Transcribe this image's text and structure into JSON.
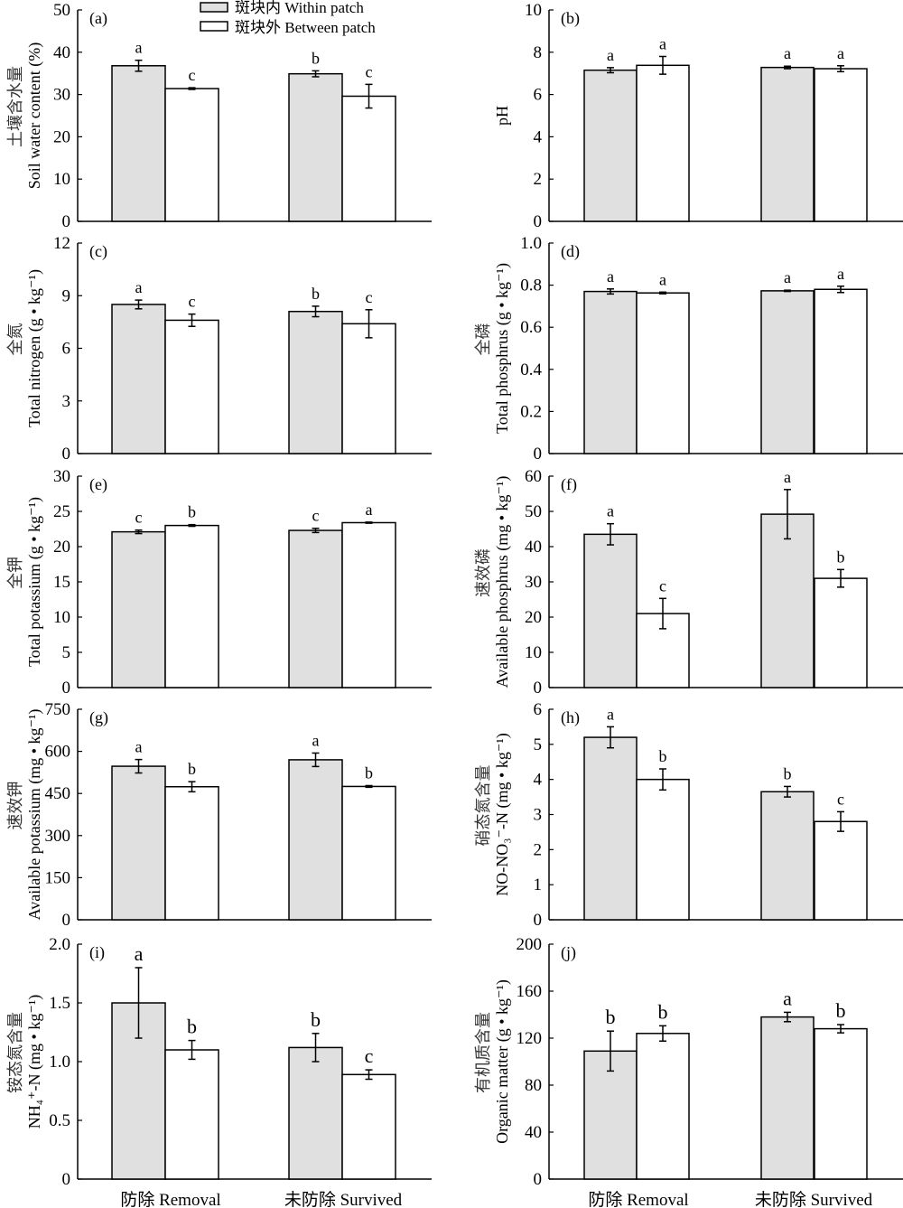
{
  "legend": {
    "items": [
      {
        "label": "斑块内 Within patch",
        "color": "#e0e0e0"
      },
      {
        "label": "斑块外 Between patch",
        "color": "#ffffff"
      }
    ]
  },
  "x_categories": [
    "防除 Removal",
    "未防除 Survived"
  ],
  "chart_data": [
    {
      "id": "a",
      "type": "bar",
      "panel_label": "(a)",
      "ylabel_cn": "土壤含水量",
      "ylabel_en": "Soil water content (%)",
      "ylim": [
        0,
        50
      ],
      "yticks": [
        0,
        10,
        20,
        30,
        40,
        50
      ],
      "tick_labels": [
        "0",
        "10",
        "20",
        "30",
        "40",
        "50"
      ],
      "categories": [
        "防除 Removal",
        "未防除 Survived"
      ],
      "series": [
        {
          "name": "斑块内 Within patch",
          "values": [
            36.8,
            34.9
          ],
          "errors": [
            1.3,
            0.7
          ],
          "letters": [
            "a",
            "b"
          ]
        },
        {
          "name": "斑块外 Between patch",
          "values": [
            31.4,
            29.6
          ],
          "errors": [
            0.2,
            2.8
          ],
          "letters": [
            "c",
            "c"
          ]
        }
      ]
    },
    {
      "id": "b",
      "type": "bar",
      "panel_label": "(b)",
      "ylabel_cn": "",
      "ylabel_en": "pH",
      "ylim": [
        0,
        10
      ],
      "yticks": [
        0,
        2,
        4,
        6,
        8,
        10
      ],
      "tick_labels": [
        "0",
        "2",
        "4",
        "6",
        "8",
        "10"
      ],
      "categories": [
        "防除 Removal",
        "未防除 Survived"
      ],
      "series": [
        {
          "name": "斑块内 Within patch",
          "values": [
            7.15,
            7.28
          ],
          "errors": [
            0.12,
            0.06
          ],
          "letters": [
            "a",
            "a"
          ]
        },
        {
          "name": "斑块外 Between patch",
          "values": [
            7.38,
            7.22
          ],
          "errors": [
            0.42,
            0.14
          ],
          "letters": [
            "a",
            "a"
          ]
        }
      ]
    },
    {
      "id": "c",
      "type": "bar",
      "panel_label": "(c)",
      "ylabel_cn": "全氮",
      "ylabel_en": "Total nitrogen (g • kg⁻¹)",
      "ylim": [
        0,
        12
      ],
      "yticks": [
        0,
        3,
        6,
        9,
        12
      ],
      "tick_labels": [
        "0",
        "3",
        "6",
        "9",
        "12"
      ],
      "categories": [
        "防除 Removal",
        "未防除 Survived"
      ],
      "series": [
        {
          "name": "斑块内 Within patch",
          "values": [
            8.5,
            8.1
          ],
          "errors": [
            0.25,
            0.3
          ],
          "letters": [
            "a",
            "b"
          ]
        },
        {
          "name": "斑块外 Between patch",
          "values": [
            7.6,
            7.4
          ],
          "errors": [
            0.35,
            0.8
          ],
          "letters": [
            "c",
            "c"
          ]
        }
      ]
    },
    {
      "id": "d",
      "type": "bar",
      "panel_label": "(d)",
      "ylabel_cn": "全磷",
      "ylabel_en": "Total phosphrus (g • kg⁻¹)",
      "ylim": [
        0,
        1.0
      ],
      "yticks": [
        0,
        0.2,
        0.4,
        0.6,
        0.8,
        1.0
      ],
      "tick_labels": [
        "0",
        "0.2",
        "0.4",
        "0.6",
        "0.8",
        "1.0"
      ],
      "categories": [
        "防除 Removal",
        "未防除 Survived"
      ],
      "series": [
        {
          "name": "斑块内 Within patch",
          "values": [
            0.77,
            0.773
          ],
          "errors": [
            0.012,
            0.003
          ],
          "letters": [
            "a",
            "a"
          ]
        },
        {
          "name": "斑块外 Between patch",
          "values": [
            0.763,
            0.78
          ],
          "errors": [
            0.004,
            0.015
          ],
          "letters": [
            "a",
            "a"
          ]
        }
      ]
    },
    {
      "id": "e",
      "type": "bar",
      "panel_label": "(e)",
      "ylabel_cn": "全钾",
      "ylabel_en": "Total potassium (g • kg⁻¹)",
      "ylim": [
        0,
        30
      ],
      "yticks": [
        0,
        5,
        10,
        15,
        20,
        25,
        30
      ],
      "tick_labels": [
        "0",
        "5",
        "10",
        "15",
        "20",
        "25",
        "30"
      ],
      "categories": [
        "防除 Removal",
        "未防除 Survived"
      ],
      "series": [
        {
          "name": "斑块内 Within patch",
          "values": [
            22.1,
            22.3
          ],
          "errors": [
            0.25,
            0.3
          ],
          "letters": [
            "c",
            "c"
          ]
        },
        {
          "name": "斑块外 Between patch",
          "values": [
            23.0,
            23.4
          ],
          "errors": [
            0.12,
            0.08
          ],
          "letters": [
            "b",
            "a"
          ]
        }
      ]
    },
    {
      "id": "f",
      "type": "bar",
      "panel_label": "(f)",
      "ylabel_cn": "速效磷",
      "ylabel_en": "Available phosphrus (mg • kg⁻¹)",
      "ylim": [
        0,
        60
      ],
      "yticks": [
        0,
        10,
        20,
        30,
        40,
        50,
        60
      ],
      "tick_labels": [
        "0",
        "10",
        "20",
        "30",
        "40",
        "50",
        "60"
      ],
      "categories": [
        "防除 Removal",
        "未防除 Survived"
      ],
      "series": [
        {
          "name": "斑块内 Within patch",
          "values": [
            43.5,
            49.2
          ],
          "errors": [
            3.0,
            7.0
          ],
          "letters": [
            "a",
            "a"
          ]
        },
        {
          "name": "斑块外 Between patch",
          "values": [
            21.0,
            31.0
          ],
          "errors": [
            4.3,
            2.5
          ],
          "letters": [
            "c",
            "b"
          ]
        }
      ]
    },
    {
      "id": "g",
      "type": "bar",
      "panel_label": "(g)",
      "ylabel_cn": "速效钾",
      "ylabel_en": "Available potassium (mg • kg⁻¹)",
      "ylim": [
        0,
        750
      ],
      "yticks": [
        0,
        150,
        300,
        450,
        600,
        750
      ],
      "tick_labels": [
        "0",
        "150",
        "300",
        "450",
        "600",
        "750"
      ],
      "categories": [
        "防除 Removal",
        "未防除 Survived"
      ],
      "series": [
        {
          "name": "斑块内 Within patch",
          "values": [
            547,
            570
          ],
          "errors": [
            24,
            24
          ],
          "letters": [
            "a",
            "a"
          ]
        },
        {
          "name": "斑块外 Between patch",
          "values": [
            474,
            475
          ],
          "errors": [
            18,
            3
          ],
          "letters": [
            "b",
            "b"
          ]
        }
      ]
    },
    {
      "id": "h",
      "type": "bar",
      "panel_label": "(h)",
      "ylabel_cn": "硝态氮含量",
      "ylabel_en": "NO-NO₃⁻-N (mg • kg⁻¹)",
      "ylim": [
        0,
        6
      ],
      "yticks": [
        0,
        1,
        2,
        3,
        4,
        5,
        6
      ],
      "tick_labels": [
        "0",
        "1",
        "2",
        "3",
        "4",
        "5",
        "6"
      ],
      "categories": [
        "防除 Removal",
        "未防除 Survived"
      ],
      "series": [
        {
          "name": "斑块内 Within patch",
          "values": [
            5.2,
            3.65
          ],
          "errors": [
            0.3,
            0.15
          ],
          "letters": [
            "a",
            "b"
          ]
        },
        {
          "name": "斑块外 Between patch",
          "values": [
            4.0,
            2.8
          ],
          "errors": [
            0.3,
            0.28
          ],
          "letters": [
            "b",
            "c"
          ]
        }
      ]
    },
    {
      "id": "i",
      "type": "bar",
      "panel_label": "(i)",
      "ylabel_cn": "铵态氮含量",
      "ylabel_en": "NH₄⁺-N (mg • kg⁻¹)",
      "ylim": [
        0,
        2.0
      ],
      "yticks": [
        0,
        0.5,
        1.0,
        1.5,
        2.0
      ],
      "tick_labels": [
        "0",
        "0.5",
        "1.0",
        "1.5",
        "2.0"
      ],
      "categories": [
        "防除 Removal",
        "未防除 Survived"
      ],
      "series": [
        {
          "name": "斑块内 Within patch",
          "values": [
            1.5,
            1.12
          ],
          "errors": [
            0.3,
            0.12
          ],
          "letters": [
            "a",
            "b"
          ]
        },
        {
          "name": "斑块外 Between patch",
          "values": [
            1.1,
            0.89
          ],
          "errors": [
            0.08,
            0.04
          ],
          "letters": [
            "b",
            "c"
          ]
        }
      ]
    },
    {
      "id": "j",
      "type": "bar",
      "panel_label": "(j)",
      "ylabel_cn": "有机质含量",
      "ylabel_en": "Organic matter (g • kg⁻¹)",
      "ylim": [
        0,
        200
      ],
      "yticks": [
        0,
        40,
        80,
        120,
        160,
        200
      ],
      "tick_labels": [
        "0",
        "40",
        "80",
        "120",
        "160",
        "200"
      ],
      "categories": [
        "防除 Removal",
        "未防除 Survived"
      ],
      "series": [
        {
          "name": "斑块内 Within patch",
          "values": [
            109,
            138
          ],
          "errors": [
            17,
            4
          ],
          "letters": [
            "b",
            "a"
          ]
        },
        {
          "name": "斑块外 Between patch",
          "values": [
            124,
            128
          ],
          "errors": [
            6.5,
            3.5
          ],
          "letters": [
            "b",
            "b"
          ]
        }
      ]
    }
  ]
}
